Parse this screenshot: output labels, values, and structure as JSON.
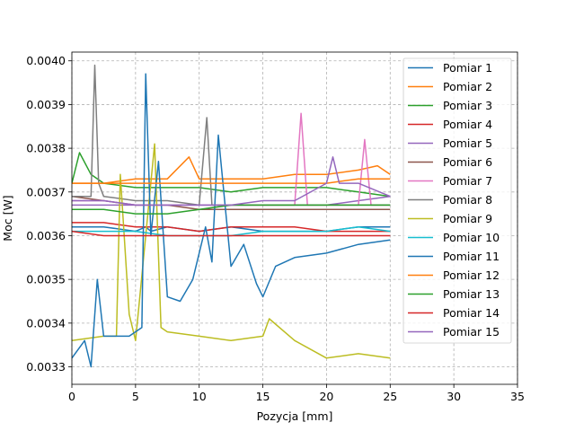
{
  "chart_data": {
    "type": "line",
    "xlabel": "Pozycja [mm]",
    "ylabel": "Moc [W]",
    "xlim": [
      0,
      35
    ],
    "ylim": [
      0.00326,
      0.00402
    ],
    "xticks": [
      "0",
      "5",
      "10",
      "15",
      "20",
      "25",
      "30",
      "35"
    ],
    "yticks": [
      "0.0033",
      "0.0034",
      "0.0035",
      "0.0036",
      "0.0037",
      "0.0038",
      "0.0039",
      "0.0040"
    ],
    "grid": true,
    "legend_position": "top-right",
    "series": [
      {
        "name": "Pomiar 1",
        "color": "#1f77b4",
        "x": [
          0,
          2.5,
          5,
          5.8,
          6.2,
          7.5,
          10,
          12.5,
          15,
          17.5,
          20,
          22.5,
          25
        ],
        "y": [
          0.00362,
          0.00362,
          0.00361,
          0.00362,
          0.00361,
          0.00362,
          0.00361,
          0.00362,
          0.00361,
          0.00361,
          0.00361,
          0.00362,
          0.00362
        ]
      },
      {
        "name": "Pomiar 2",
        "color": "#ff7f0e",
        "x": [
          0,
          2.5,
          5,
          7.5,
          9.2,
          10,
          12.5,
          15,
          17.5,
          20,
          22.5,
          24,
          25
        ],
        "y": [
          0.00372,
          0.00372,
          0.00373,
          0.00373,
          0.00378,
          0.00373,
          0.00373,
          0.00373,
          0.00374,
          0.00374,
          0.00375,
          0.00376,
          0.00374
        ]
      },
      {
        "name": "Pomiar 3",
        "color": "#2ca02c",
        "x": [
          0,
          0.6,
          1.5,
          2.5,
          5,
          7.5,
          10,
          12.5,
          15,
          17.5,
          20,
          22.5,
          25
        ],
        "y": [
          0.00372,
          0.00379,
          0.00374,
          0.00372,
          0.00371,
          0.00371,
          0.00371,
          0.0037,
          0.00371,
          0.00371,
          0.00371,
          0.0037,
          0.00369
        ]
      },
      {
        "name": "Pomiar 4",
        "color": "#d62728",
        "x": [
          0,
          2.5,
          5,
          7.5,
          10,
          12.5,
          15,
          17.5,
          20,
          22.5,
          25
        ],
        "y": [
          0.00363,
          0.00363,
          0.00362,
          0.00362,
          0.00361,
          0.00362,
          0.00362,
          0.00362,
          0.00361,
          0.00361,
          0.00361
        ]
      },
      {
        "name": "Pomiar 5",
        "color": "#9467bd",
        "x": [
          0,
          2.5,
          5,
          7.5,
          10,
          12.5,
          15,
          17.5,
          20,
          22.5,
          25
        ],
        "y": [
          0.00367,
          0.00367,
          0.00367,
          0.00367,
          0.00367,
          0.00367,
          0.00367,
          0.00367,
          0.00367,
          0.00368,
          0.00369
        ]
      },
      {
        "name": "Pomiar 6",
        "color": "#8c564b",
        "x": [
          0,
          2.5,
          5,
          7.5,
          10,
          12.5,
          15,
          17.5,
          20,
          22.5,
          25
        ],
        "y": [
          0.00369,
          0.00368,
          0.00367,
          0.00367,
          0.00366,
          0.00366,
          0.00366,
          0.00366,
          0.00366,
          0.00366,
          0.00366
        ]
      },
      {
        "name": "Pomiar 7",
        "color": "#e377c2",
        "x": [
          0,
          2.5,
          5,
          7.5,
          10,
          12.5,
          15,
          17.5,
          18,
          18.5,
          20,
          22.5,
          23,
          23.5,
          25
        ],
        "y": [
          0.00368,
          0.00368,
          0.00367,
          0.00367,
          0.00367,
          0.00367,
          0.00367,
          0.00367,
          0.00388,
          0.00367,
          0.00367,
          0.00367,
          0.00382,
          0.00367,
          0.00367
        ]
      },
      {
        "name": "Pomiar 8",
        "color": "#7f7f7f",
        "x": [
          0,
          1.5,
          1.8,
          2.1,
          2.5,
          5,
          7.5,
          10,
          10.6,
          11,
          12.5,
          15,
          17.5,
          20,
          22.5,
          25
        ],
        "y": [
          0.00369,
          0.00369,
          0.00399,
          0.00372,
          0.00369,
          0.00368,
          0.00368,
          0.00367,
          0.00387,
          0.00367,
          0.00367,
          0.00367,
          0.00367,
          0.00367,
          0.00367,
          0.00367
        ]
      },
      {
        "name": "Pomiar 9",
        "color": "#bcbd22",
        "x": [
          0,
          2.5,
          3.5,
          3.8,
          4.5,
          5,
          6.5,
          7,
          7.5,
          10,
          12.5,
          15,
          15.5,
          17.5,
          20,
          22.5,
          25
        ],
        "y": [
          0.00336,
          0.00337,
          0.00337,
          0.00374,
          0.00342,
          0.00336,
          0.00381,
          0.00339,
          0.00338,
          0.00337,
          0.00336,
          0.00337,
          0.00341,
          0.00336,
          0.00332,
          0.00333,
          0.00332
        ]
      },
      {
        "name": "Pomiar 10",
        "color": "#17becf",
        "x": [
          0,
          2.5,
          5,
          7.5,
          10,
          12.5,
          15,
          17.5,
          20,
          22.5,
          25
        ],
        "y": [
          0.00361,
          0.00361,
          0.00361,
          0.0036,
          0.0036,
          0.0036,
          0.00361,
          0.00361,
          0.00361,
          0.00362,
          0.00361
        ]
      },
      {
        "name": "Pomiar 11",
        "color": "#1f77b4",
        "x": [
          0,
          1,
          1.5,
          2,
          2.5,
          3.5,
          4.5,
          5.5,
          5.8,
          6.2,
          6.8,
          7.5,
          8.5,
          9.5,
          10.5,
          11,
          11.5,
          12.5,
          13.5,
          14.5,
          15,
          16,
          17.5,
          20,
          22.5,
          25
        ],
        "y": [
          0.00332,
          0.00336,
          0.0033,
          0.0035,
          0.00337,
          0.00337,
          0.00337,
          0.00339,
          0.00397,
          0.0036,
          0.00377,
          0.00346,
          0.00345,
          0.0035,
          0.00362,
          0.00354,
          0.00383,
          0.00353,
          0.00358,
          0.00349,
          0.00346,
          0.00353,
          0.00355,
          0.00356,
          0.00358,
          0.00359
        ]
      },
      {
        "name": "Pomiar 12",
        "color": "#ff7f0e",
        "x": [
          0,
          2.5,
          5,
          7.5,
          10,
          12.5,
          15,
          17.5,
          20,
          22.5,
          25
        ],
        "y": [
          0.00372,
          0.00372,
          0.00372,
          0.00372,
          0.00372,
          0.00372,
          0.00372,
          0.00372,
          0.00372,
          0.00373,
          0.00373
        ]
      },
      {
        "name": "Pomiar 13",
        "color": "#2ca02c",
        "x": [
          0,
          2.5,
          5,
          7.5,
          10,
          12.5,
          15,
          17.5,
          20,
          22.5,
          25
        ],
        "y": [
          0.00366,
          0.00366,
          0.00365,
          0.00365,
          0.00366,
          0.00367,
          0.00367,
          0.00367,
          0.00367,
          0.00367,
          0.00367
        ]
      },
      {
        "name": "Pomiar 14",
        "color": "#d62728",
        "x": [
          0,
          2.5,
          5,
          7.5,
          10,
          12.5,
          15,
          17.5,
          20,
          22.5,
          25
        ],
        "y": [
          0.00361,
          0.0036,
          0.0036,
          0.0036,
          0.0036,
          0.0036,
          0.0036,
          0.0036,
          0.0036,
          0.0036,
          0.0036
        ]
      },
      {
        "name": "Pomiar 15",
        "color": "#9467bd",
        "x": [
          0,
          2.5,
          5,
          7.5,
          10,
          12.5,
          15,
          17.5,
          20,
          20.5,
          21,
          22.5,
          25
        ],
        "y": [
          0.00368,
          0.00368,
          0.00367,
          0.00367,
          0.00367,
          0.00367,
          0.00368,
          0.00368,
          0.00372,
          0.00378,
          0.00372,
          0.00372,
          0.00369
        ]
      }
    ]
  }
}
